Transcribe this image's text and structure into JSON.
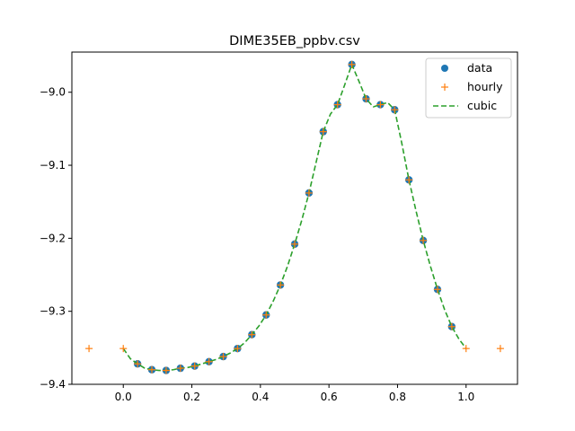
{
  "chart_data": {
    "type": "line",
    "title": "DIME35EB_ppbv.csv",
    "xlabel": "",
    "ylabel": "",
    "xlim": [
      -0.15,
      1.15
    ],
    "ylim": [
      -9.4,
      -8.945
    ],
    "x_ticks": [
      0.0,
      0.2,
      0.4,
      0.6,
      0.8,
      1.0
    ],
    "x_tick_labels": [
      "0.0",
      "0.2",
      "0.4",
      "0.6",
      "0.8",
      "1.0"
    ],
    "y_ticks": [
      -9.4,
      -9.3,
      -9.2,
      -9.1,
      -9.0
    ],
    "y_tick_labels": [
      "−9.4",
      "−9.3",
      "−9.2",
      "−9.1",
      "−9.0"
    ],
    "grid": false,
    "legend_position": "top-right",
    "series": [
      {
        "name": "data",
        "style": "markers",
        "marker": "circle",
        "color": "#1f77b4",
        "x": [
          0.0417,
          0.0833,
          0.125,
          0.1667,
          0.2083,
          0.25,
          0.2917,
          0.3333,
          0.375,
          0.4167,
          0.4583,
          0.5,
          0.5417,
          0.5833,
          0.625,
          0.6667,
          0.7083,
          0.75,
          0.7917,
          0.8333,
          0.875,
          0.9167,
          0.9583
        ],
        "y": [
          -9.372,
          -9.38,
          -9.381,
          -9.378,
          -9.375,
          -9.369,
          -9.362,
          -9.351,
          -9.332,
          -9.305,
          -9.264,
          -9.208,
          -9.138,
          -9.054,
          -9.017,
          -8.962,
          -9.009,
          -9.017,
          -9.024,
          -9.12,
          -9.203,
          -9.27,
          -9.321
        ]
      },
      {
        "name": "hourly",
        "style": "markers",
        "marker": "plus",
        "color": "#ff7f0e",
        "x": [
          -0.1,
          0.0,
          0.0417,
          0.0833,
          0.125,
          0.1667,
          0.2083,
          0.25,
          0.2917,
          0.3333,
          0.375,
          0.4167,
          0.4583,
          0.5,
          0.5417,
          0.5833,
          0.625,
          0.6667,
          0.7083,
          0.75,
          0.7917,
          0.8333,
          0.875,
          0.9167,
          0.9583,
          1.0,
          1.1
        ],
        "y": [
          -9.351,
          -9.351,
          -9.372,
          -9.38,
          -9.381,
          -9.378,
          -9.375,
          -9.369,
          -9.362,
          -9.351,
          -9.332,
          -9.305,
          -9.264,
          -9.208,
          -9.138,
          -9.054,
          -9.017,
          -8.962,
          -9.009,
          -9.017,
          -9.024,
          -9.12,
          -9.203,
          -9.27,
          -9.321,
          -9.351,
          -9.351
        ]
      },
      {
        "name": "cubic",
        "style": "dashed-line",
        "color": "#2ca02c",
        "x": [
          0.0,
          0.0208,
          0.0417,
          0.0625,
          0.0833,
          0.1042,
          0.125,
          0.1458,
          0.1667,
          0.1875,
          0.2083,
          0.2292,
          0.25,
          0.2708,
          0.2917,
          0.3125,
          0.3333,
          0.3542,
          0.375,
          0.3958,
          0.4167,
          0.4375,
          0.4583,
          0.4792,
          0.5,
          0.5208,
          0.5417,
          0.5625,
          0.5833,
          0.6042,
          0.625,
          0.6458,
          0.6667,
          0.6875,
          0.7083,
          0.7292,
          0.75,
          0.7708,
          0.7917,
          0.8125,
          0.8333,
          0.8542,
          0.875,
          0.8958,
          0.9167,
          0.9375,
          0.9583,
          0.9792,
          1.0
        ],
        "y": [
          -9.351,
          -9.365,
          -9.372,
          -9.378,
          -9.38,
          -9.381,
          -9.381,
          -9.38,
          -9.378,
          -9.377,
          -9.375,
          -9.372,
          -9.369,
          -9.366,
          -9.362,
          -9.357,
          -9.351,
          -9.343,
          -9.332,
          -9.32,
          -9.305,
          -9.286,
          -9.264,
          -9.238,
          -9.208,
          -9.175,
          -9.138,
          -9.096,
          -9.054,
          -9.03,
          -9.017,
          -8.99,
          -8.962,
          -8.985,
          -9.009,
          -9.02,
          -9.017,
          -9.014,
          -9.024,
          -9.07,
          -9.12,
          -9.163,
          -9.203,
          -9.238,
          -9.27,
          -9.298,
          -9.321,
          -9.338,
          -9.351
        ]
      }
    ]
  }
}
